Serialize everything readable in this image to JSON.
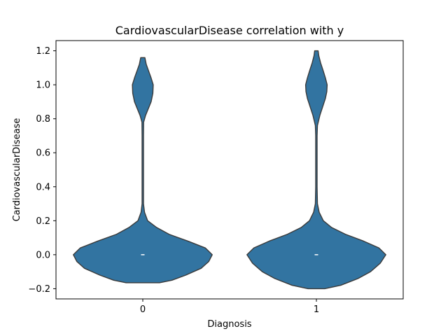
{
  "chart_data": {
    "type": "violin",
    "title": "CardiovascularDisease correlation with y",
    "xlabel": "Diagnosis",
    "ylabel": "CardiovascularDisease",
    "categories": [
      "0",
      "1"
    ],
    "ylim": [
      -0.26,
      1.26
    ],
    "yticks": [
      -0.2,
      0.0,
      0.2,
      0.4,
      0.6,
      0.8,
      1.0,
      1.2
    ],
    "ytick_labels": [
      "−0.2",
      "0.0",
      "0.2",
      "0.4",
      "0.6",
      "0.8",
      "1.0",
      "1.2"
    ],
    "grid": false,
    "color": "#3274a1",
    "edge_color": "#3a3a3a",
    "violins": [
      {
        "category": "0",
        "median": 0.0,
        "ymin": -0.165,
        "ymax": 1.16,
        "density": [
          [
            -0.165,
            0.24
          ],
          [
            -0.15,
            0.42
          ],
          [
            -0.12,
            0.62
          ],
          [
            -0.08,
            0.84
          ],
          [
            -0.04,
            0.95
          ],
          [
            0.0,
            1.0
          ],
          [
            0.04,
            0.9
          ],
          [
            0.08,
            0.65
          ],
          [
            0.12,
            0.38
          ],
          [
            0.16,
            0.2
          ],
          [
            0.2,
            0.07
          ],
          [
            0.25,
            0.025
          ],
          [
            0.3,
            0.01
          ],
          [
            0.4,
            0.01
          ],
          [
            0.5,
            0.01
          ],
          [
            0.6,
            0.01
          ],
          [
            0.7,
            0.01
          ],
          [
            0.78,
            0.012
          ],
          [
            0.82,
            0.04
          ],
          [
            0.86,
            0.08
          ],
          [
            0.9,
            0.12
          ],
          [
            0.95,
            0.145
          ],
          [
            1.0,
            0.15
          ],
          [
            1.04,
            0.12
          ],
          [
            1.08,
            0.085
          ],
          [
            1.12,
            0.05
          ],
          [
            1.16,
            0.03
          ]
        ]
      },
      {
        "category": "1",
        "median": 0.0,
        "ymin": -0.2,
        "ymax": 1.2,
        "density": [
          [
            -0.2,
            0.12
          ],
          [
            -0.18,
            0.35
          ],
          [
            -0.14,
            0.6
          ],
          [
            -0.1,
            0.78
          ],
          [
            -0.05,
            0.92
          ],
          [
            0.0,
            1.0
          ],
          [
            0.04,
            0.9
          ],
          [
            0.08,
            0.68
          ],
          [
            0.12,
            0.42
          ],
          [
            0.16,
            0.22
          ],
          [
            0.2,
            0.1
          ],
          [
            0.25,
            0.04
          ],
          [
            0.3,
            0.015
          ],
          [
            0.4,
            0.01
          ],
          [
            0.5,
            0.01
          ],
          [
            0.6,
            0.01
          ],
          [
            0.7,
            0.01
          ],
          [
            0.76,
            0.015
          ],
          [
            0.82,
            0.05
          ],
          [
            0.87,
            0.09
          ],
          [
            0.92,
            0.13
          ],
          [
            0.96,
            0.15
          ],
          [
            1.0,
            0.155
          ],
          [
            1.04,
            0.13
          ],
          [
            1.08,
            0.1
          ],
          [
            1.13,
            0.06
          ],
          [
            1.17,
            0.035
          ],
          [
            1.2,
            0.025
          ]
        ]
      }
    ]
  }
}
